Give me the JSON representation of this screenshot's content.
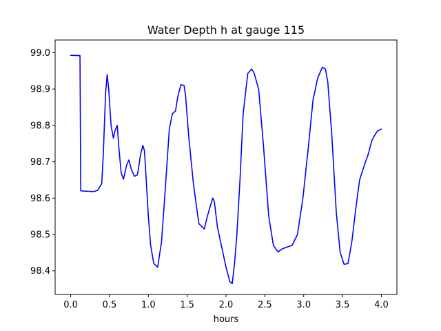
{
  "chart_data": {
    "type": "line",
    "title": "Water Depth h at gauge 115",
    "xlabel": "hours",
    "ylabel": "",
    "xlim": [
      -0.2,
      4.2
    ],
    "ylim": [
      98.335,
      99.035
    ],
    "xticks": [
      0.0,
      0.5,
      1.0,
      1.5,
      2.0,
      2.5,
      3.0,
      3.5,
      4.0
    ],
    "xtick_labels": [
      "0.0",
      "0.5",
      "1.0",
      "1.5",
      "2.0",
      "2.5",
      "3.0",
      "3.5",
      "4.0"
    ],
    "yticks": [
      98.4,
      98.5,
      98.6,
      98.7,
      98.8,
      98.9,
      99.0
    ],
    "ytick_labels": [
      "98.4",
      "98.5",
      "98.6",
      "98.7",
      "98.8",
      "98.9",
      "99.0"
    ],
    "grid": false,
    "series": [
      {
        "color": "#0000ff",
        "x": [
          0.0,
          0.12,
          0.13,
          0.2,
          0.3,
          0.35,
          0.4,
          0.42,
          0.45,
          0.47,
          0.49,
          0.52,
          0.55,
          0.57,
          0.6,
          0.62,
          0.65,
          0.68,
          0.72,
          0.75,
          0.78,
          0.82,
          0.86,
          0.9,
          0.93,
          0.95,
          0.97,
          1.0,
          1.03,
          1.07,
          1.12,
          1.17,
          1.22,
          1.27,
          1.31,
          1.35,
          1.38,
          1.42,
          1.46,
          1.48,
          1.52,
          1.58,
          1.65,
          1.72,
          1.76,
          1.8,
          1.83,
          1.85,
          1.89,
          1.93,
          1.97,
          2.0,
          2.05,
          2.08,
          2.11,
          2.14,
          2.18,
          2.22,
          2.28,
          2.33,
          2.36,
          2.42,
          2.48,
          2.55,
          2.61,
          2.67,
          2.72,
          2.78,
          2.85,
          2.92,
          2.99,
          3.06,
          3.12,
          3.18,
          3.24,
          3.28,
          3.31,
          3.36,
          3.42,
          3.47,
          3.52,
          3.57,
          3.62,
          3.67,
          3.72,
          3.78,
          3.83,
          3.88,
          3.92,
          3.95,
          4.0
        ],
        "y": [
          98.993,
          98.992,
          98.62,
          98.619,
          98.618,
          98.622,
          98.64,
          98.72,
          98.89,
          98.94,
          98.9,
          98.8,
          98.765,
          98.785,
          98.8,
          98.74,
          98.67,
          98.652,
          98.69,
          98.705,
          98.68,
          98.66,
          98.664,
          98.72,
          98.745,
          98.73,
          98.66,
          98.55,
          98.47,
          98.42,
          98.41,
          98.48,
          98.63,
          98.79,
          98.832,
          98.84,
          98.88,
          98.912,
          98.91,
          98.88,
          98.77,
          98.64,
          98.53,
          98.515,
          98.55,
          98.58,
          98.6,
          98.59,
          98.52,
          98.48,
          98.44,
          98.41,
          98.37,
          98.365,
          98.42,
          98.5,
          98.65,
          98.83,
          98.943,
          98.955,
          98.945,
          98.9,
          98.75,
          98.55,
          98.47,
          98.452,
          98.46,
          98.465,
          98.47,
          98.5,
          98.6,
          98.74,
          98.87,
          98.93,
          98.96,
          98.955,
          98.92,
          98.78,
          98.56,
          98.45,
          98.418,
          98.42,
          98.48,
          98.57,
          98.65,
          98.69,
          98.72,
          98.76,
          98.775,
          98.785,
          98.79
        ]
      }
    ]
  }
}
